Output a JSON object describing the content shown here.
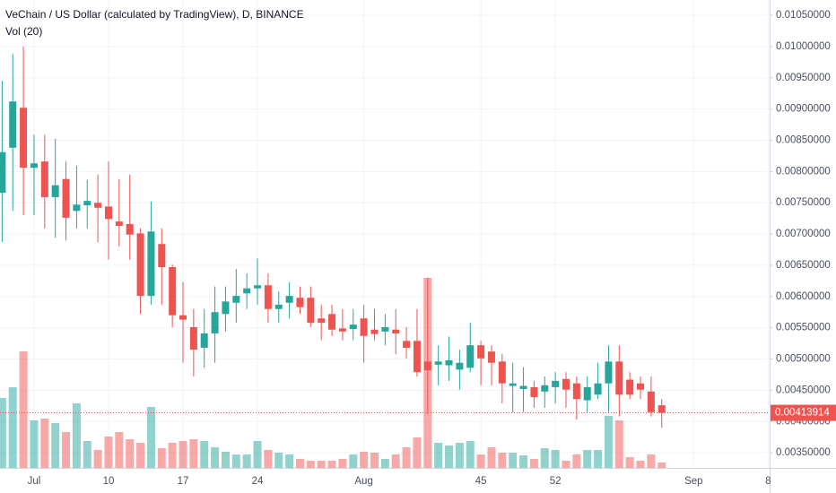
{
  "chart_data": {
    "type": "candlestick",
    "title": "VeChain / US Dollar (calculated by TradingView), D, BINANCE",
    "indicator": "Vol (20)",
    "categories": [
      null,
      null,
      null,
      null,
      null,
      null,
      null,
      null,
      null,
      null,
      null,
      null,
      null,
      null,
      null,
      null,
      null,
      null,
      null,
      null,
      null,
      null,
      null,
      null,
      null,
      null,
      null,
      null,
      null,
      null,
      null,
      null,
      null,
      null,
      null,
      null,
      null,
      null,
      null,
      null,
      null,
      null,
      null,
      null,
      null,
      null,
      null,
      null,
      null,
      null,
      null,
      null,
      null,
      null,
      null,
      null,
      null,
      null,
      null,
      null,
      null,
      null,
      null
    ],
    "open": [
      0.00766,
      0.00838,
      0.00902,
      0.00806,
      0.00816,
      0.00759,
      0.00788,
      0.00737,
      0.00746,
      0.0075,
      0.00744,
      0.0072,
      0.00716,
      0.00701,
      0.00601,
      0.00684,
      0.00647,
      0.0057,
      0.00551,
      0.00518,
      0.00541,
      0.00572,
      0.0059,
      0.00605,
      0.00613,
      0.00618,
      0.0058,
      0.0059,
      0.00598,
      0.00598,
      0.00565,
      0.00572,
      0.00549,
      0.00548,
      0.00565,
      0.00547,
      0.00544,
      0.00547,
      0.00529,
      0.00529,
      0.00496,
      0.00491,
      0.0049,
      0.00483,
      0.00486,
      0.00522,
      0.00512,
      0.00496,
      0.00457,
      0.00452,
      0.00455,
      0.00448,
      0.00455,
      0.00468,
      0.00461,
      0.00434,
      0.00443,
      0.00461,
      0.00496,
      0.00467,
      0.00461,
      0.00448,
      0.00426
    ],
    "high": [
      0.00945,
      0.00988,
      0.01,
      0.00859,
      0.00859,
      0.00852,
      0.00816,
      0.00809,
      0.00787,
      0.00795,
      0.00816,
      0.00788,
      0.00795,
      0.00709,
      0.00752,
      0.00709,
      0.00651,
      0.00623,
      0.0058,
      0.0058,
      0.00616,
      0.00616,
      0.00644,
      0.00637,
      0.00661,
      0.00637,
      0.00608,
      0.00623,
      0.00616,
      0.00616,
      0.00587,
      0.00587,
      0.0058,
      0.0058,
      0.00587,
      0.0058,
      0.00572,
      0.0058,
      0.00551,
      0.0058,
      0.0063,
      0.00522,
      0.00536,
      0.00515,
      0.00558,
      0.00529,
      0.00522,
      0.00508,
      0.00494,
      0.00487,
      0.00465,
      0.00472,
      0.00479,
      0.00479,
      0.00472,
      0.00472,
      0.00494,
      0.00522,
      0.00522,
      0.00479,
      0.00472,
      0.00472,
      0.00436
    ],
    "low": [
      0.00687,
      0.00737,
      0.0073,
      0.0073,
      0.00709,
      0.00694,
      0.0069,
      0.00709,
      0.00709,
      0.00687,
      0.00659,
      0.0068,
      0.00659,
      0.00572,
      0.00587,
      0.00587,
      0.00551,
      0.00494,
      0.00472,
      0.00486,
      0.00494,
      0.00544,
      0.00558,
      0.0058,
      0.00587,
      0.00558,
      0.00558,
      0.00565,
      0.00572,
      0.00551,
      0.0053,
      0.00537,
      0.0053,
      0.0053,
      0.00494,
      0.0053,
      0.00522,
      0.00508,
      0.00501,
      0.00472,
      0.00412,
      0.00458,
      0.00465,
      0.00451,
      0.00479,
      0.00458,
      0.00458,
      0.00429,
      0.00415,
      0.00415,
      0.00422,
      0.00422,
      0.00429,
      0.00422,
      0.00403,
      0.00415,
      0.00436,
      0.00415,
      0.00408,
      0.00436,
      0.00436,
      0.00408,
      0.0039
    ],
    "close": [
      0.00831,
      0.00912,
      0.00806,
      0.00813,
      0.00759,
      0.00778,
      0.00726,
      0.00747,
      0.00753,
      0.00742,
      0.00724,
      0.00713,
      0.00699,
      0.00601,
      0.00704,
      0.00647,
      0.0057,
      0.00563,
      0.00515,
      0.00541,
      0.00575,
      0.00592,
      0.00601,
      0.00613,
      0.00618,
      0.0058,
      0.00587,
      0.00601,
      0.00583,
      0.00558,
      0.00558,
      0.00547,
      0.00544,
      0.00555,
      0.00537,
      0.0054,
      0.00551,
      0.00541,
      0.00518,
      0.00479,
      0.00482,
      0.00496,
      0.00498,
      0.00494,
      0.00522,
      0.00501,
      0.00494,
      0.00461,
      0.00461,
      0.00457,
      0.00439,
      0.00458,
      0.00465,
      0.00451,
      0.00436,
      0.00455,
      0.00461,
      0.00496,
      0.00443,
      0.00443,
      0.00451,
      0.00415,
      0.00413914
    ],
    "volume": [
      78,
      90,
      130,
      53,
      55,
      50,
      40,
      72,
      30,
      20,
      35,
      40,
      32,
      28,
      68,
      22,
      28,
      30,
      32,
      30,
      23,
      18,
      15,
      15,
      30,
      20,
      17,
      15,
      10,
      8,
      8,
      8,
      10,
      15,
      18,
      17,
      10,
      15,
      23,
      34,
      212,
      28,
      25,
      28,
      30,
      15,
      23,
      17,
      17,
      14,
      10,
      22,
      20,
      8,
      15,
      20,
      20,
      58,
      53,
      12,
      8,
      15,
      6
    ],
    "volume_lim": [
      0,
      200
    ],
    "up_color": "#26a69a",
    "down_color": "#ef5350",
    "xlim": [
      -0.2,
      72.14
    ],
    "xticks": [
      {
        "value": 3,
        "label": "Jul"
      },
      10,
      17,
      24,
      {
        "value": 34,
        "label": "Aug"
      },
      45,
      52,
      {
        "value": 65,
        "label": "Sep"
      },
      {
        "value": 72,
        "label": "8"
      }
    ],
    "ylim": [
      0.003258,
      0.010744
    ],
    "yticks": [
      {
        "value": 0.0035,
        "label": "0.00350000"
      },
      {
        "value": 0.004,
        "label": "0.00400000"
      },
      {
        "value": 0.0045,
        "label": "0.00450000"
      },
      {
        "value": 0.005,
        "label": "0.00500000"
      },
      {
        "value": 0.0055,
        "label": "0.00550000"
      },
      {
        "value": 0.006,
        "label": "0.00600000"
      },
      {
        "value": 0.0065,
        "label": "0.00650000"
      },
      {
        "value": 0.007,
        "label": "0.00700000"
      },
      {
        "value": 0.0075,
        "label": "0.00750000"
      },
      {
        "value": 0.008,
        "label": "0.00800000"
      },
      {
        "value": 0.0085,
        "label": "0.00850000"
      },
      {
        "value": 0.009,
        "label": "0.00900000"
      },
      {
        "value": 0.0095,
        "label": "0.00950000"
      },
      {
        "value": 0.01,
        "label": "0.01000000"
      },
      {
        "value": 0.0105,
        "label": "0.01050000"
      }
    ],
    "grid": true
  }
}
